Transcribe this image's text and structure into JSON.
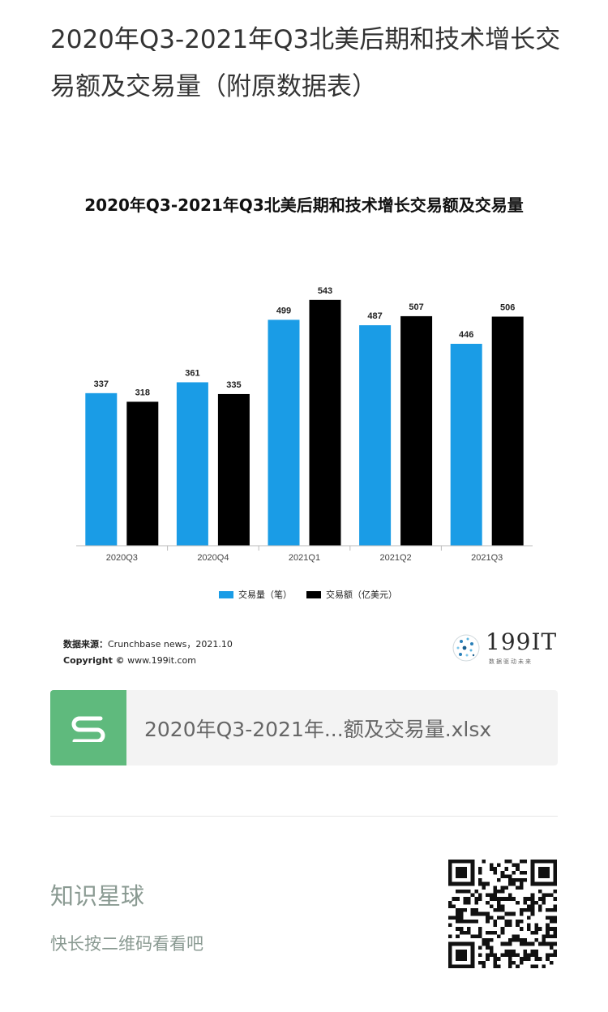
{
  "post": {
    "title": "2020年Q3-2021年Q3北美后期和技术增长交易额及交易量（附原数据表）"
  },
  "chart_data": {
    "type": "bar",
    "title": "2020年Q3-2021年Q3北美后期和技术增长交易额及交易量",
    "categories": [
      "2020Q3",
      "2020Q4",
      "2021Q1",
      "2021Q2",
      "2021Q3"
    ],
    "series": [
      {
        "name": "交易量（笔）",
        "values": [
          337,
          361,
          499,
          487,
          446
        ],
        "color": "#1a9ce6"
      },
      {
        "name": "交易额（亿美元）",
        "values": [
          318,
          335,
          543,
          507,
          506
        ],
        "color": "#000000"
      }
    ],
    "xlabel": "",
    "ylabel": "",
    "ylim": [
      0,
      600
    ],
    "grid": false,
    "legend": "bottom"
  },
  "source": {
    "label": "数据来源：",
    "text": "Crunchbase news，2021.10",
    "copyright_label": "Copyright ©",
    "copyright_text": "www.199it.com"
  },
  "logo": {
    "name": "199IT",
    "tagline": "数据驱动未来"
  },
  "attachment": {
    "file_name": "2020年Q3-2021年...额及交易量.xlsx",
    "icon": "spreadsheet-s-icon"
  },
  "footer": {
    "title": "知识星球",
    "subtitle": "快长按二维码看看吧",
    "qr_icon": "qr-code-icon"
  }
}
